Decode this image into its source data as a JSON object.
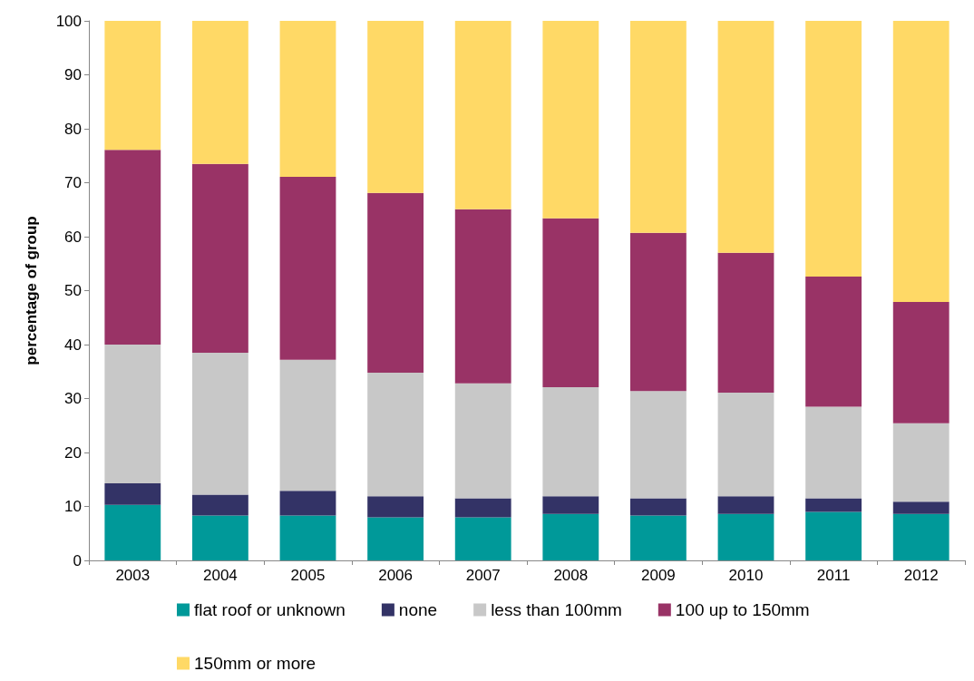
{
  "chart_data": {
    "type": "bar",
    "stacked": true,
    "ylabel": "percentage of group",
    "categories": [
      "2003",
      "2004",
      "2005",
      "2006",
      "2007",
      "2008",
      "2009",
      "2010",
      "2011",
      "2012"
    ],
    "series": [
      {
        "name": "flat roof or unknown",
        "color": "#009999",
        "values": [
          10.3,
          8.3,
          8.3,
          8,
          8,
          8.6,
          8.3,
          8.6,
          9,
          8.6
        ]
      },
      {
        "name": "none",
        "color": "#333366",
        "values": [
          4.0,
          3.9,
          4.6,
          3.9,
          3.5,
          3.3,
          3.2,
          3.3,
          2.5,
          2.3
        ]
      },
      {
        "name": "less than 100mm",
        "color": "#c8c8c8",
        "values": [
          25.7,
          26.3,
          24.3,
          22.9,
          21.3,
          20.2,
          19.9,
          19.2,
          17.0,
          14.5
        ]
      },
      {
        "name": "100 up to 150mm",
        "color": "#993366",
        "values": [
          36.1,
          35.0,
          33.9,
          33.3,
          32.3,
          31.3,
          29.3,
          25.9,
          24.1,
          22.5
        ]
      },
      {
        "name": "150mm or more",
        "color": "#ffd966",
        "values": [
          23.9,
          26.5,
          28.9,
          31.9,
          34.9,
          36.6,
          39.3,
          43,
          47.4,
          52.1
        ]
      }
    ],
    "ylim": [
      0,
      100
    ],
    "yticks": [
      0,
      10,
      20,
      30,
      40,
      50,
      60,
      70,
      80,
      90,
      100
    ],
    "grid": false,
    "legend": "bottom"
  }
}
